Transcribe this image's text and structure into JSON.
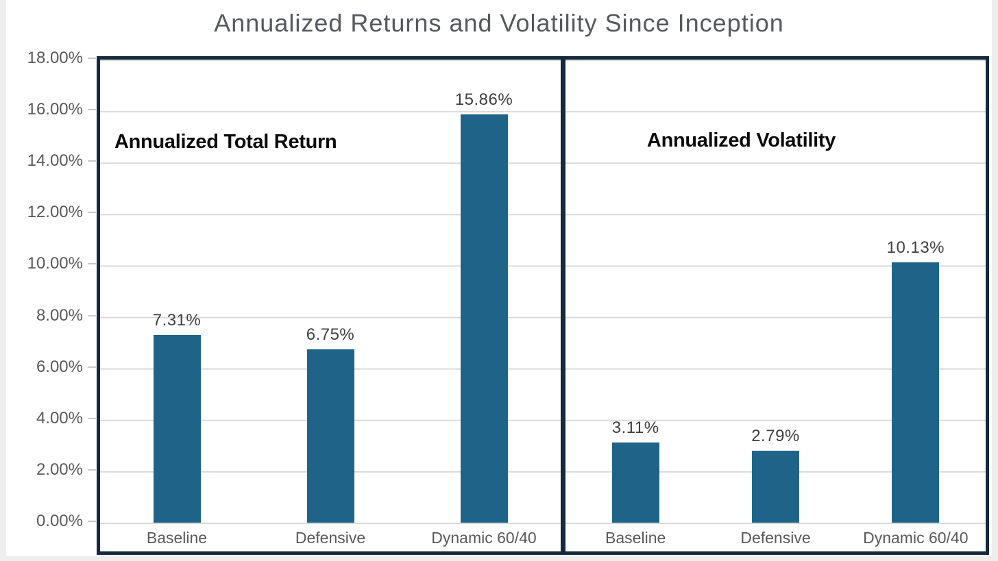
{
  "title": "Annualized Returns and Volatility Since Inception",
  "colors": {
    "bar": "#1f6488",
    "frame": "#142a3c",
    "gridline": "#d9d9d9",
    "title_text": "#55585d",
    "axis_text": "#595959",
    "data_label_text": "#3f3f3f",
    "panel_title_text": "#0b0b0b"
  },
  "y_axis": {
    "min": 0,
    "max": 18,
    "tick_step": 2,
    "tick_labels": [
      "18.00%",
      "16.00%",
      "14.00%",
      "12.00%",
      "10.00%",
      "8.00%",
      "6.00%",
      "4.00%",
      "2.00%",
      "0.00%"
    ]
  },
  "chart_data": [
    {
      "type": "bar",
      "title": "Annualized Total Return",
      "categories": [
        "Baseline",
        "Defensive",
        "Dynamic 60/40"
      ],
      "values": [
        7.31,
        6.75,
        15.86
      ],
      "labels": [
        "7.31%",
        "6.75%",
        "15.86%"
      ],
      "ylim": [
        0,
        18
      ],
      "grid": true,
      "legend": "none",
      "bar_color": "#1f6488"
    },
    {
      "type": "bar",
      "title": "Annualized Volatility",
      "categories": [
        "Baseline",
        "Defensive",
        "Dynamic 60/40"
      ],
      "values": [
        3.11,
        2.79,
        10.13
      ],
      "labels": [
        "3.11%",
        "2.79%",
        "10.13%"
      ],
      "ylim": [
        0,
        18
      ],
      "grid": true,
      "legend": "none",
      "bar_color": "#1f6488"
    }
  ]
}
